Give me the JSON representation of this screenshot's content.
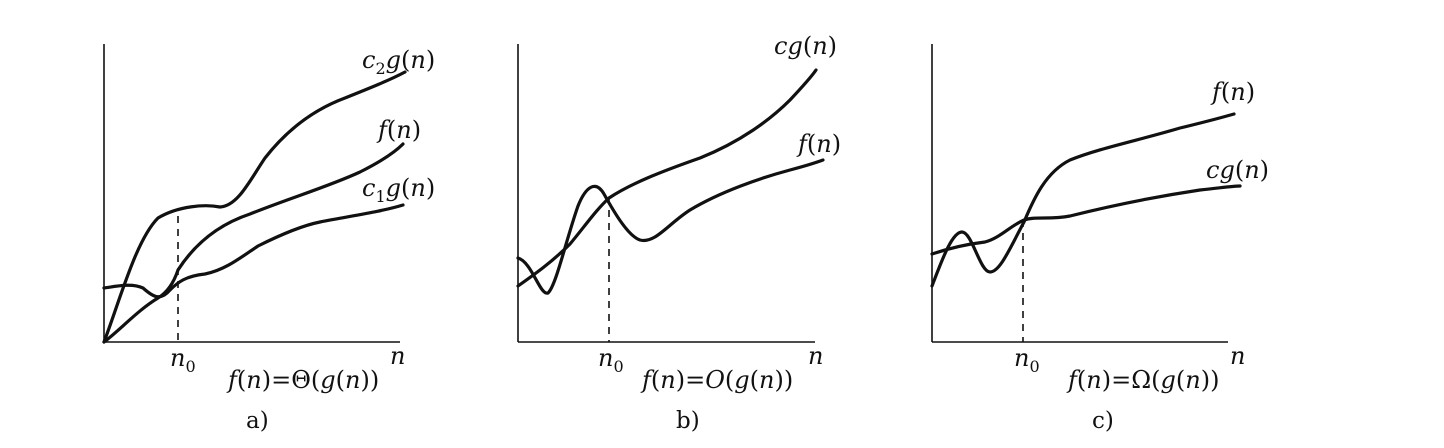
{
  "panels": [
    {
      "id": "a",
      "caption": "a)",
      "formula": "f(n)=Θ(g(n))",
      "x_label": "n",
      "n0_label": "n0",
      "curves": [
        {
          "name": "upper",
          "label": "c2g(n)"
        },
        {
          "name": "f",
          "label": "f(n)"
        },
        {
          "name": "lower",
          "label": "c1g(n)"
        }
      ]
    },
    {
      "id": "b",
      "caption": "b)",
      "formula": "f(n)=O(g(n))",
      "x_label": "n",
      "n0_label": "n0",
      "curves": [
        {
          "name": "upper",
          "label": "cg(n)"
        },
        {
          "name": "f",
          "label": "f(n)"
        }
      ]
    },
    {
      "id": "c",
      "caption": "c)",
      "formula": "f(n)=Ω(g(n))",
      "x_label": "n",
      "n0_label": "n0",
      "curves": [
        {
          "name": "f",
          "label": "f(n)"
        },
        {
          "name": "lower",
          "label": "cg(n)"
        }
      ]
    }
  ]
}
